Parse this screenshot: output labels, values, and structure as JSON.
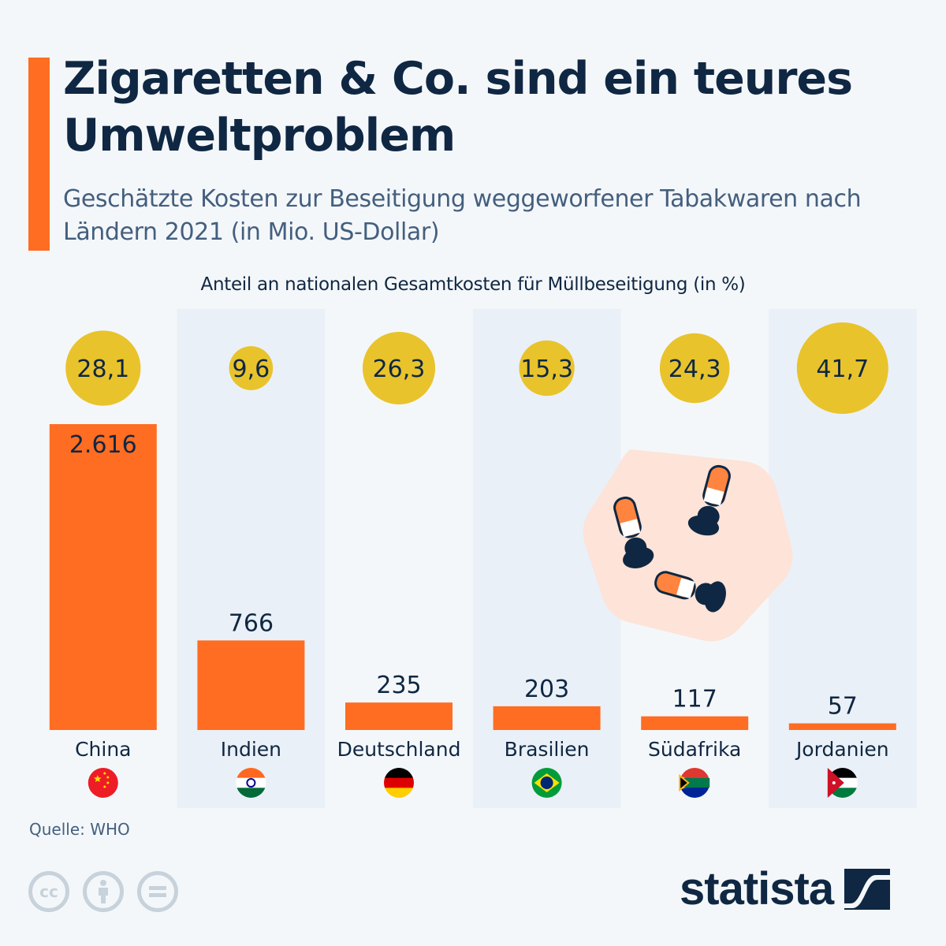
{
  "header": {
    "title": "Zigaretten & Co. sind ein teures Umweltproblem",
    "subtitle": "Geschätzte Kosten zur Beseitigung weggeworfener Tabakwaren nach Ländern 2021 (in Mio. US-Dollar)",
    "bubble_caption": "Anteil an nationalen Gesamtkosten für Müllbeseitigung (in %)"
  },
  "colors": {
    "bar": "#ff6d22",
    "bubble": "#e8c32c",
    "text_dark": "#0f2742",
    "text_muted": "#445f7e",
    "column_shade": "#eaf0f7",
    "background": "#f4f7fa",
    "illustration_bg": "#fde3d8"
  },
  "chart_data": {
    "type": "bar",
    "title": "Zigaretten & Co. sind ein teures Umweltproblem",
    "subtitle": "Geschätzte Kosten zur Beseitigung weggeworfener Tabakwaren nach Ländern 2021 (in Mio. US-Dollar)",
    "xlabel": "",
    "ylabel": "Mio. US-Dollar",
    "ylim": [
      0,
      2616
    ],
    "grid": false,
    "categories": [
      "China",
      "Indien",
      "Deutschland",
      "Brasilien",
      "Südafrika",
      "Jordanien"
    ],
    "series": [
      {
        "name": "Kosten (Mio. US-Dollar)",
        "values": [
          2616,
          766,
          235,
          203,
          117,
          57
        ],
        "labels": [
          "2.616",
          "766",
          "235",
          "203",
          "117",
          "57"
        ]
      },
      {
        "name": "Anteil an nationalen Gesamtkosten für Müllbeseitigung (in %)",
        "values": [
          28.1,
          9.6,
          26.3,
          15.3,
          24.3,
          41.7
        ],
        "labels": [
          "28,1",
          "9,6",
          "26,3",
          "15,3",
          "24,3",
          "41,7"
        ],
        "mark": "bubble"
      }
    ],
    "flags": [
      "china-flag",
      "india-flag",
      "germany-flag",
      "brazil-flag",
      "south-africa-flag",
      "jordan-flag"
    ]
  },
  "footer": {
    "source": "Quelle: WHO",
    "license_icons": [
      "cc-icon",
      "attribution-icon",
      "no-derivatives-icon"
    ],
    "cc_label": "cc",
    "logo_text": "statista"
  }
}
